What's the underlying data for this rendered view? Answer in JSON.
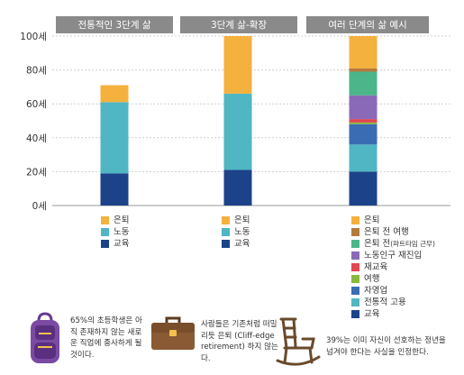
{
  "chart_data": {
    "type": "bar",
    "stacked": true,
    "ylim": [
      0,
      100
    ],
    "y_ticks": [
      {
        "value": 0,
        "label": "0세"
      },
      {
        "value": 20,
        "label": "20세"
      },
      {
        "value": 40,
        "label": "40세"
      },
      {
        "value": 60,
        "label": "60세"
      },
      {
        "value": 80,
        "label": "80세"
      },
      {
        "value": 100,
        "label": "100세"
      }
    ],
    "groups": [
      {
        "header": "전통적인 3단계 삶",
        "segments": [
          {
            "name": "교육",
            "color": "#1c4389",
            "start": 0,
            "end": 19
          },
          {
            "name": "노동",
            "color": "#50b6c4",
            "start": 19,
            "end": 61
          },
          {
            "name": "은퇴",
            "color": "#f5b13d",
            "start": 61,
            "end": 71
          }
        ],
        "legend": [
          {
            "label": "은퇴",
            "sub": "",
            "color": "#f5b13d"
          },
          {
            "label": "노동",
            "sub": "",
            "color": "#50b6c4"
          },
          {
            "label": "교육",
            "sub": "",
            "color": "#1c4389"
          }
        ]
      },
      {
        "header": "3단계 삶-확장",
        "segments": [
          {
            "name": "교육",
            "color": "#1c4389",
            "start": 0,
            "end": 21
          },
          {
            "name": "노동",
            "color": "#50b6c4",
            "start": 21,
            "end": 66
          },
          {
            "name": "은퇴",
            "color": "#f5b13d",
            "start": 66,
            "end": 100
          }
        ],
        "legend": [
          {
            "label": "은퇴",
            "sub": "",
            "color": "#f5b13d"
          },
          {
            "label": "노동",
            "sub": "",
            "color": "#50b6c4"
          },
          {
            "label": "교육",
            "sub": "",
            "color": "#1c4389"
          }
        ]
      },
      {
        "header": "여러 단계의 삶 예시",
        "segments": [
          {
            "name": "교육",
            "color": "#1c4389",
            "start": 0,
            "end": 20
          },
          {
            "name": "전통적 고용",
            "color": "#50b6c4",
            "start": 20,
            "end": 36
          },
          {
            "name": "자영업",
            "color": "#3a6cb4",
            "start": 36,
            "end": 48
          },
          {
            "name": "여행",
            "color": "#8ab83c",
            "start": 48,
            "end": 49
          },
          {
            "name": "재교육",
            "color": "#e0464e",
            "start": 49,
            "end": 51
          },
          {
            "name": "노동인구 재진입",
            "color": "#8a6ab8",
            "start": 51,
            "end": 65
          },
          {
            "name": "은퇴 전(파트타임 근무)",
            "color": "#4cb58a",
            "start": 65,
            "end": 79
          },
          {
            "name": "은퇴 전 여행",
            "color": "#b57a3a",
            "start": 79,
            "end": 81
          },
          {
            "name": "은퇴",
            "color": "#f5b13d",
            "start": 81,
            "end": 100
          }
        ],
        "legend": [
          {
            "label": "은퇴",
            "sub": "",
            "color": "#f5b13d"
          },
          {
            "label": "은퇴 전 여행",
            "sub": "",
            "color": "#b57a3a"
          },
          {
            "label": "은퇴 전",
            "sub": "(파트타임 근무)",
            "color": "#4cb58a"
          },
          {
            "label": "노동인구 재진입",
            "sub": "",
            "color": "#8a6ab8"
          },
          {
            "label": "재교육",
            "sub": "",
            "color": "#e0464e"
          },
          {
            "label": "여행",
            "sub": "",
            "color": "#8ab83c"
          },
          {
            "label": "자영업",
            "sub": "",
            "color": "#3a6cb4"
          },
          {
            "label": "전통적 고용",
            "sub": "",
            "color": "#50b6c4"
          },
          {
            "label": "교육",
            "sub": "",
            "color": "#1c4389"
          }
        ]
      }
    ]
  },
  "notes": {
    "backpack": "65%의 초등학생은 아직 존재하지 않는 새로운 직업에 종사하게 될 것이다.",
    "briefcase": "사람들은 기존처럼 떠밀리듯 은퇴 (Cliff-edge retirement) 하지 않는다.",
    "chair": "39%는 이미 자신이 선호하는 정년을 넘겨야 한다는 사실을 인정한다."
  },
  "icons": {
    "backpack": "backpack-icon",
    "briefcase": "briefcase-icon",
    "chair": "rocking-chair-icon"
  }
}
